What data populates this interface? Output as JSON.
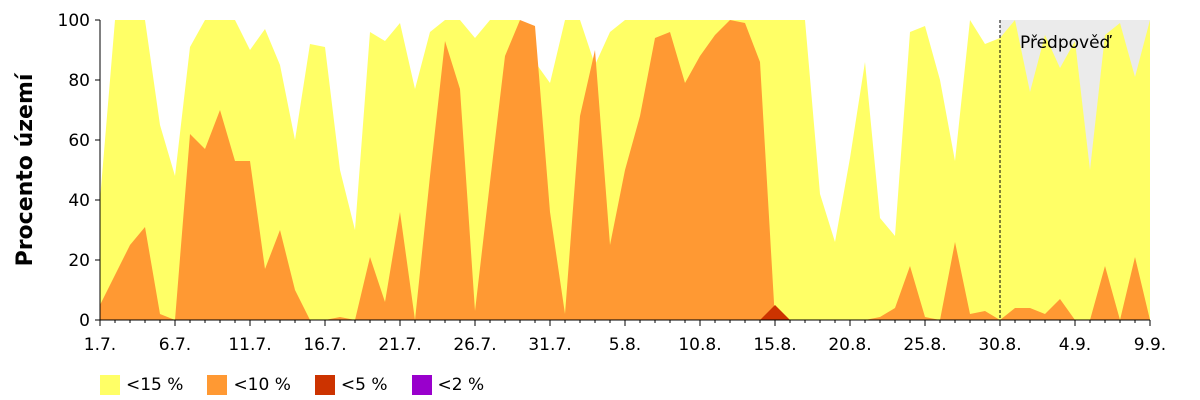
{
  "chart_data": {
    "type": "area",
    "title": "",
    "xlabel": "",
    "ylabel": "Procento území",
    "ylim": [
      0,
      100
    ],
    "yticks": [
      0,
      20,
      40,
      60,
      80,
      100
    ],
    "grid": false,
    "x_tick_labels": [
      "1.7.",
      "6.7.",
      "11.7.",
      "16.7.",
      "21.7.",
      "26.7.",
      "31.7.",
      "5.8.",
      "10.8.",
      "15.8.",
      "20.8.",
      "25.8.",
      "30.8.",
      "4.9.",
      "9.9."
    ],
    "forecast": {
      "label": "Předpověď",
      "start_day": 60,
      "end_day": 70,
      "shade_color": "#ebebeb"
    },
    "colors": {
      "lt15": "#ffff66",
      "lt10": "#ff9933",
      "lt5": "#cc3300",
      "lt2": "#9900cc"
    },
    "legend": [
      "<15 %",
      "<10 %",
      "<5 %",
      "<2 %"
    ],
    "legend_placement": "bottom",
    "series": [
      {
        "name": "<15 %",
        "values": [
          40,
          100,
          100,
          100,
          65,
          48,
          91,
          100,
          100,
          100,
          90,
          97,
          85,
          60,
          92,
          91,
          50,
          30,
          96,
          93,
          99,
          77,
          96,
          100,
          100,
          94,
          100,
          100,
          100,
          86,
          79,
          100,
          100,
          85,
          96,
          100,
          100,
          100,
          100,
          100,
          100,
          100,
          100,
          100,
          100,
          100,
          100,
          100,
          42,
          26,
          54,
          86,
          34,
          28,
          96,
          98,
          80,
          53,
          100,
          92,
          94,
          100,
          76,
          95,
          84,
          93,
          50,
          95,
          99,
          81,
          100
        ]
      },
      {
        "name": "<10 %",
        "values": [
          5,
          15,
          25,
          31,
          2,
          0,
          62,
          57,
          70,
          53,
          53,
          17,
          30,
          10,
          0,
          0,
          1,
          0,
          21,
          6,
          36,
          0,
          48,
          93,
          77,
          3,
          46,
          88,
          100,
          98,
          36,
          2,
          68,
          90,
          25,
          50,
          68,
          94,
          96,
          79,
          88,
          95,
          100,
          99,
          86,
          0,
          0,
          0,
          0,
          0,
          0,
          0,
          1,
          4,
          18,
          1,
          0,
          26,
          2,
          3,
          0,
          4,
          4,
          2,
          7,
          0,
          0,
          18,
          0,
          21,
          0
        ]
      },
      {
        "name": "<5 %",
        "values": [
          0,
          0,
          0,
          0,
          0,
          0,
          0,
          0,
          0,
          0,
          0,
          0,
          0,
          0,
          0,
          0,
          0,
          0,
          0,
          0,
          0,
          0,
          0,
          0,
          0,
          0,
          0,
          0,
          0,
          0,
          0,
          0,
          0,
          0,
          0,
          0,
          0,
          0,
          0,
          0,
          0,
          0,
          0,
          0,
          0,
          5,
          0,
          0,
          0,
          0,
          0,
          0,
          0,
          0,
          0,
          0,
          0,
          0,
          0,
          0,
          0,
          0,
          0,
          0,
          0,
          0,
          0,
          0,
          0,
          0,
          0
        ]
      },
      {
        "name": "<2 %",
        "values": [
          0,
          0,
          0,
          0,
          0,
          0,
          0,
          0,
          0,
          0,
          0,
          0,
          0,
          0,
          0,
          0,
          0,
          0,
          0,
          0,
          0,
          0,
          0,
          0,
          0,
          0,
          0,
          0,
          0,
          0,
          0,
          0,
          0,
          0,
          0,
          0,
          0,
          0,
          0,
          0,
          0,
          0,
          0,
          0,
          0,
          0,
          0,
          0,
          0,
          0,
          0,
          0,
          0,
          0,
          0,
          0,
          0,
          0,
          0,
          0,
          0,
          0,
          0,
          0,
          0,
          0,
          0,
          0,
          0,
          0,
          0
        ]
      }
    ]
  }
}
